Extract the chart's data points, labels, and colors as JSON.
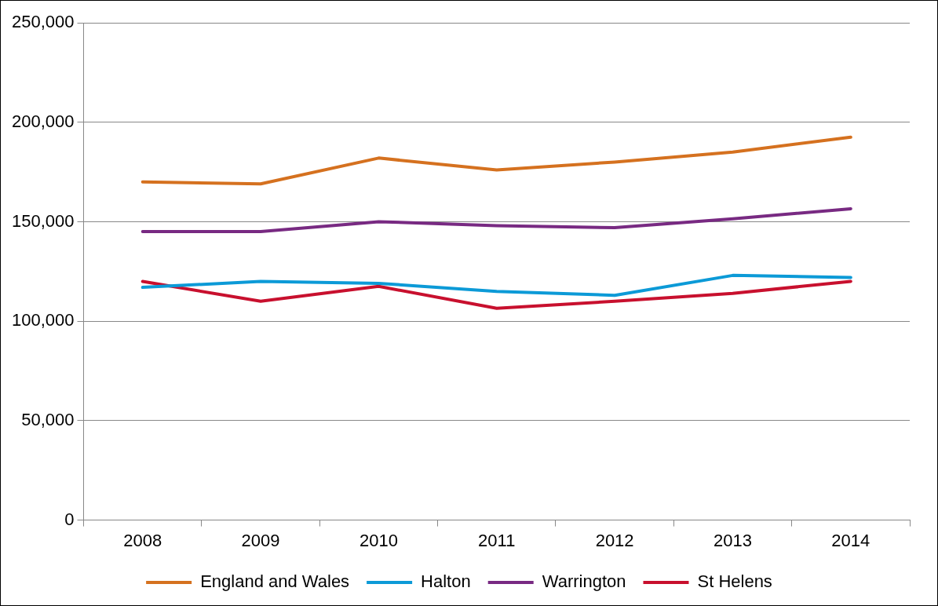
{
  "chart_data": {
    "type": "line",
    "categories": [
      "2008",
      "2009",
      "2010",
      "2011",
      "2012",
      "2013",
      "2014"
    ],
    "series": [
      {
        "name": "England and Wales",
        "color": "#d5711f",
        "values": [
          170000,
          169000,
          182000,
          176000,
          180000,
          185000,
          192500
        ]
      },
      {
        "name": "Halton",
        "color": "#0c9ad7",
        "values": [
          117000,
          120000,
          119000,
          115000,
          113000,
          123000,
          122000
        ]
      },
      {
        "name": "Warrington",
        "color": "#782a82",
        "values": [
          145000,
          145000,
          150000,
          148000,
          147000,
          151500,
          156500
        ]
      },
      {
        "name": "St Helens",
        "color": "#c8102e",
        "values": [
          120000,
          110000,
          117500,
          106500,
          110000,
          114000,
          120000
        ]
      }
    ],
    "ylim": [
      0,
      250000
    ],
    "yticks": [
      {
        "value": 0,
        "label": "0"
      },
      {
        "value": 50000,
        "label": "50,000"
      },
      {
        "value": 100000,
        "label": "100,000"
      },
      {
        "value": 150000,
        "label": "150,000"
      },
      {
        "value": 200000,
        "label": "200,000"
      },
      {
        "value": 250000,
        "label": "250,000"
      }
    ],
    "grid": "y",
    "legend": "bottom",
    "marker": "none",
    "line_style": "solid"
  }
}
